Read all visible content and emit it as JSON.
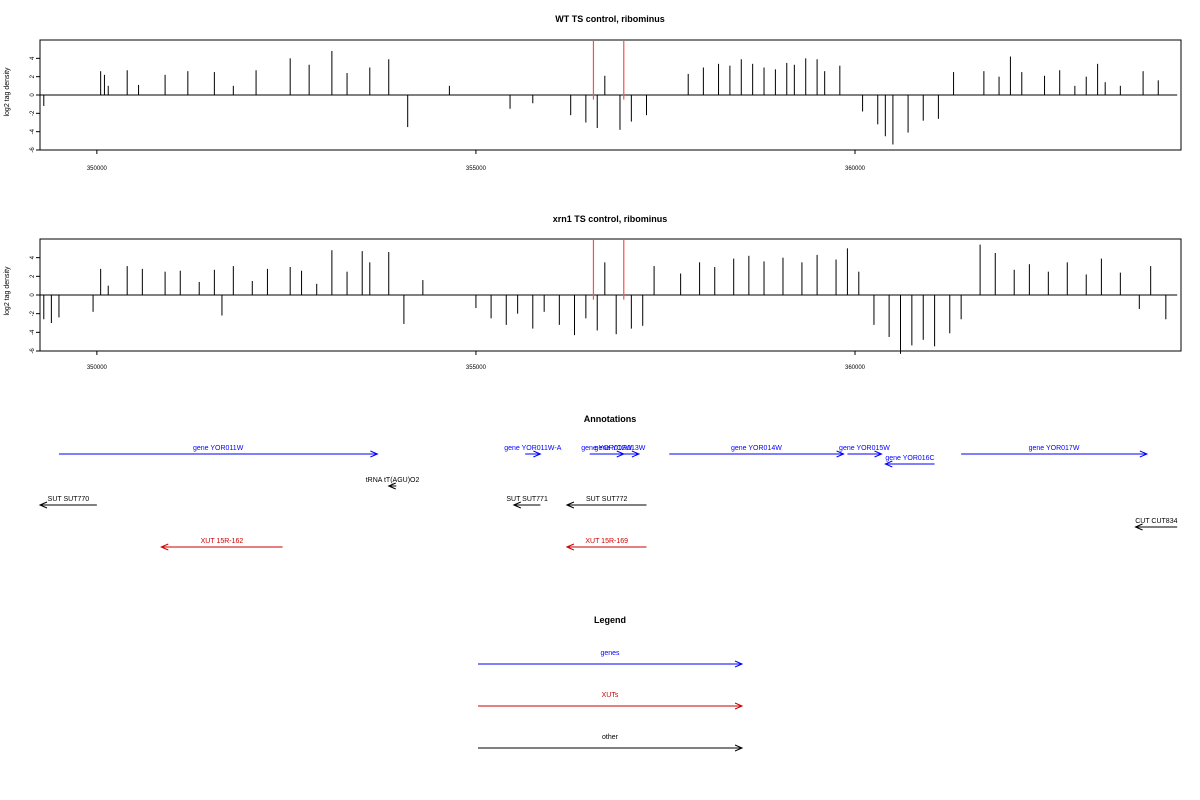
{
  "colors": {
    "genes": "#0000ff",
    "xuts": "#cc0000",
    "other": "#000000",
    "highlight": "#ff4d4d",
    "bars": "#000000"
  },
  "chart_data": [
    {
      "type": "bar",
      "title": "WT TS control, ribominus",
      "ylabel": "log2 tag density",
      "xlabel": "",
      "xlim": [
        349250,
        364300
      ],
      "ylim": [
        -6,
        6
      ],
      "x_ticks": [
        350000,
        355000,
        360000
      ],
      "x_tick_labels": [
        "350000",
        "355000",
        "360000"
      ],
      "y_ticks": [
        -6,
        -4,
        -2,
        0,
        2,
        4
      ],
      "y_tick_labels": [
        "-6",
        "-4",
        "-2",
        "0",
        "2",
        "4"
      ],
      "highlight_lines_x": [
        356550,
        356950
      ],
      "grid": false,
      "series": [
        {
          "x": [
            349300,
            350050,
            350100,
            350150,
            350400,
            350550,
            350900,
            351200,
            351550,
            351800,
            352100,
            352550,
            352800,
            353100,
            353300,
            353600,
            353850,
            354100,
            354650,
            355450,
            355750,
            356250,
            356450,
            356600,
            356700,
            356900,
            357050,
            357250,
            357800,
            358000,
            358200,
            358350,
            358500,
            358650,
            358800,
            358950,
            359100,
            359200,
            359350,
            359500,
            359600,
            359800,
            360100,
            360300,
            360400,
            360500,
            360700,
            360900,
            361100,
            361300,
            361700,
            361900,
            362050,
            362200,
            362500,
            362700,
            362900,
            363050,
            363200,
            363300,
            363500,
            363800,
            364000
          ],
          "values": [
            -1.2,
            2.6,
            2.2,
            1.0,
            2.7,
            1.1,
            2.2,
            2.6,
            2.5,
            1.0,
            2.7,
            4.0,
            3.3,
            4.8,
            2.4,
            3.0,
            3.9,
            -3.5,
            1.0,
            -1.5,
            -0.9,
            -2.2,
            -3.0,
            -3.6,
            2.1,
            -3.8,
            -2.9,
            -2.2,
            2.3,
            3.0,
            3.4,
            3.2,
            3.9,
            3.4,
            3.0,
            2.8,
            3.5,
            3.3,
            4.0,
            3.9,
            2.6,
            3.2,
            -1.8,
            -3.2,
            -4.5,
            -5.4,
            -4.1,
            -2.8,
            -2.6,
            2.5,
            2.6,
            2.0,
            4.2,
            2.5,
            2.1,
            2.7,
            1.0,
            2.0,
            3.4,
            1.4,
            1.0,
            2.6,
            1.6
          ]
        }
      ]
    },
    {
      "type": "bar",
      "title": "xrn1 TS control, ribominus",
      "ylabel": "log2 tag density",
      "xlabel": "",
      "xlim": [
        349250,
        364300
      ],
      "ylim": [
        -6,
        6
      ],
      "x_ticks": [
        350000,
        355000,
        360000
      ],
      "x_tick_labels": [
        "350000",
        "355000",
        "360000"
      ],
      "y_ticks": [
        -6,
        -4,
        -2,
        0,
        2,
        4
      ],
      "y_tick_labels": [
        "-6",
        "-4",
        "-2",
        "0",
        "2",
        "4"
      ],
      "highlight_lines_x": [
        356550,
        356950
      ],
      "grid": false,
      "series": [
        {
          "x": [
            349300,
            349400,
            349500,
            349950,
            350050,
            350150,
            350400,
            350600,
            350900,
            351100,
            351350,
            351550,
            351650,
            351800,
            352050,
            352250,
            352550,
            352700,
            352900,
            353100,
            353300,
            353500,
            353600,
            353850,
            354050,
            354300,
            355000,
            355200,
            355400,
            355550,
            355750,
            355900,
            356100,
            356300,
            356450,
            356600,
            356700,
            356850,
            357050,
            357200,
            357350,
            357700,
            357950,
            358150,
            358400,
            358600,
            358800,
            359050,
            359300,
            359500,
            359750,
            359900,
            360050,
            360250,
            360450,
            360600,
            360750,
            360900,
            361050,
            361250,
            361400,
            361650,
            361850,
            362100,
            362300,
            362550,
            362800,
            363050,
            363250,
            363500,
            363750,
            363900,
            364100
          ],
          "values": [
            -2.6,
            -3.0,
            -2.4,
            -1.8,
            2.8,
            1.0,
            3.1,
            2.8,
            2.5,
            2.6,
            1.4,
            2.7,
            -2.2,
            3.1,
            1.5,
            2.8,
            3.0,
            2.6,
            1.2,
            4.8,
            2.5,
            4.7,
            3.5,
            4.6,
            -3.1,
            1.6,
            -1.4,
            -2.5,
            -3.2,
            -2.0,
            -3.6,
            -1.8,
            -3.2,
            -4.3,
            -2.5,
            -3.8,
            3.5,
            -4.2,
            -3.6,
            -3.3,
            3.1,
            2.3,
            3.5,
            3.0,
            3.9,
            4.2,
            3.6,
            4.0,
            3.5,
            4.3,
            3.8,
            5.0,
            2.5,
            -3.2,
            -4.5,
            -6.3,
            -5.4,
            -4.8,
            -5.5,
            -4.1,
            -2.6,
            5.4,
            4.5,
            2.7,
            3.3,
            2.5,
            3.5,
            2.2,
            3.9,
            2.4,
            -1.5,
            3.1,
            -2.6
          ]
        }
      ]
    }
  ],
  "annotations": {
    "title": "Annotations",
    "items": [
      {
        "label": "gene YOR011W",
        "type": "genes",
        "start": 349500,
        "end": 353700,
        "dir": "right",
        "row": 0
      },
      {
        "label": "gene YOR011W-A",
        "type": "genes",
        "start": 355650,
        "end": 355850,
        "dir": "right",
        "row": 0
      },
      {
        "label": "gene YOR012W",
        "type": "genes",
        "start": 356500,
        "end": 356950,
        "dir": "right",
        "row": 0
      },
      {
        "label": "gene YOR013W",
        "type": "genes",
        "start": 356650,
        "end": 357150,
        "dir": "right",
        "row": 0
      },
      {
        "label": "gene YOR014W",
        "type": "genes",
        "start": 357550,
        "end": 359850,
        "dir": "right",
        "row": 0
      },
      {
        "label": "gene YOR015W",
        "type": "genes",
        "start": 359900,
        "end": 360350,
        "dir": "right",
        "row": 0
      },
      {
        "label": "gene YOR016C",
        "type": "genes",
        "start": 360400,
        "end": 361050,
        "dir": "left",
        "row": 0.5
      },
      {
        "label": "gene YOR017W",
        "type": "genes",
        "start": 361400,
        "end": 363850,
        "dir": "right",
        "row": 0
      },
      {
        "label": "tRNA tT(AGU)O2",
        "type": "other",
        "start": 353850,
        "end": 353950,
        "dir": "left",
        "row": 1
      },
      {
        "label": "SUT SUT770",
        "type": "other",
        "start": 349250,
        "end": 350000,
        "dir": "left",
        "row": 2
      },
      {
        "label": "SUT SUT771",
        "type": "other",
        "start": 355500,
        "end": 355850,
        "dir": "left",
        "row": 2
      },
      {
        "label": "SUT SUT772",
        "type": "other",
        "start": 356200,
        "end": 357250,
        "dir": "left",
        "row": 2
      },
      {
        "label": "CUT CUT834",
        "type": "other",
        "start": 363700,
        "end": 364250,
        "dir": "left",
        "row": 3
      },
      {
        "label": "XUT 15R-162",
        "type": "xuts",
        "start": 350850,
        "end": 352450,
        "dir": "left",
        "row": 4
      },
      {
        "label": "XUT 15R-169",
        "type": "xuts",
        "start": 356200,
        "end": 357250,
        "dir": "left",
        "row": 4
      }
    ]
  },
  "legend": {
    "title": "Legend",
    "items": [
      {
        "label": "genes",
        "type": "genes"
      },
      {
        "label": "XUTs",
        "type": "xuts"
      },
      {
        "label": "other",
        "type": "other"
      }
    ]
  }
}
